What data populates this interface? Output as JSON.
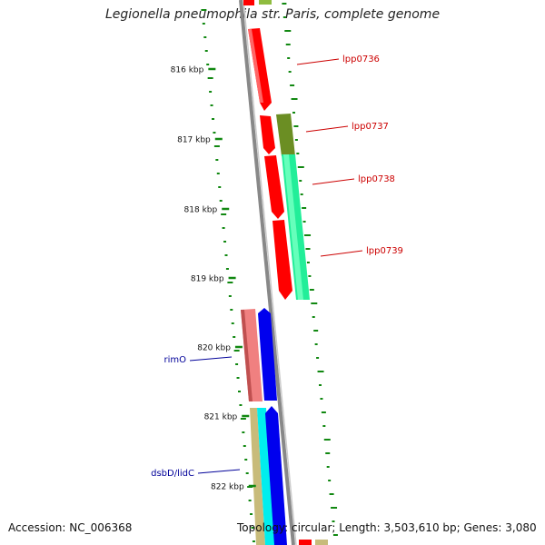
{
  "title": "Legionella pneumophila str. Paris, complete genome",
  "accession": "Accession: NC_006368",
  "topology": "Topology: circular; Length: 3,503,610 bp; Genes: 3,080",
  "colors": {
    "backbone": "#777777",
    "scale_ticks": "#118811",
    "gc_ticks": "#118811",
    "label_right": "#cc0000",
    "label_left": "#000099"
  },
  "scale_labels": [
    "816 kbp",
    "817 kbp",
    "818 kbp",
    "819 kbp",
    "820 kbp",
    "821 kbp",
    "822 kbp"
  ],
  "gene_labels": [
    {
      "text": "lpp0736",
      "side": "right"
    },
    {
      "text": "lpp0737",
      "side": "right"
    },
    {
      "text": "lpp0738",
      "side": "right"
    },
    {
      "text": "lpp0739",
      "side": "right"
    },
    {
      "text": "rimO",
      "side": "left"
    },
    {
      "text": "dsbD/lidC",
      "side": "left"
    }
  ]
}
